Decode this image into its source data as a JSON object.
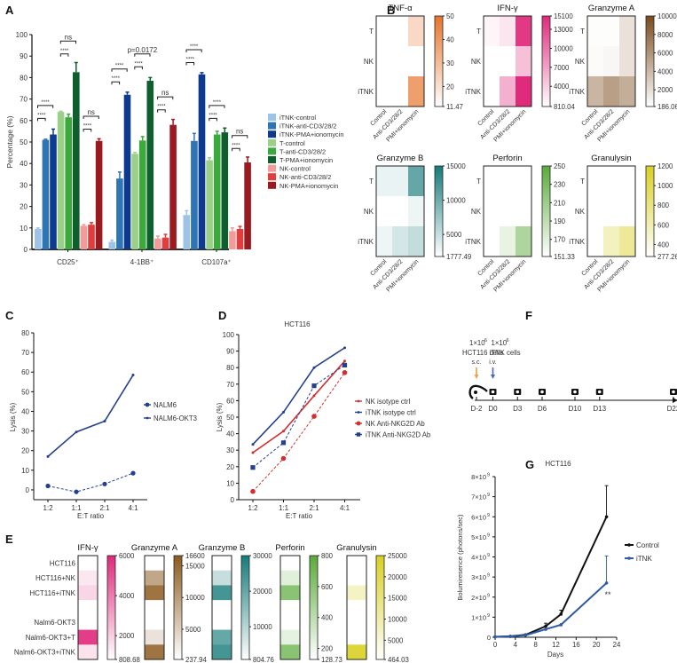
{
  "panels": {
    "A": "A",
    "B": "B",
    "C": "C",
    "D": "D",
    "E": "E",
    "F": "F",
    "G": "G"
  },
  "chart_data": [
    {
      "id": "A",
      "type": "bar",
      "title": "",
      "xlabel": "",
      "ylabel": "Percentage (%)",
      "ylim": [
        0,
        100
      ],
      "yticks": [
        0,
        10,
        20,
        30,
        40,
        50,
        60,
        70,
        80,
        90,
        100
      ],
      "categories": [
        "CD25⁺",
        "4-1BB⁺",
        "CD107a⁺"
      ],
      "legend_position": "right",
      "series": [
        {
          "name": "iTNK-control",
          "color": "#9dc3e6",
          "values": [
            9.5,
            3.5,
            16
          ],
          "err": [
            0.5,
            0.8,
            2
          ]
        },
        {
          "name": "iTNK-anti-CD3/28/2",
          "color": "#2e75b6",
          "values": [
            51,
            33,
            50.5
          ],
          "err": [
            0.3,
            3,
            3.5
          ]
        },
        {
          "name": "iTNK-PMA+ionomycin",
          "color": "#0d3a8e",
          "values": [
            53.5,
            72,
            81.5
          ],
          "err": [
            2.5,
            1.2,
            0.8
          ]
        },
        {
          "name": "T-control",
          "color": "#9bd088",
          "values": [
            64,
            44.5,
            41.5
          ],
          "err": [
            0.3,
            0.6,
            1.2
          ]
        },
        {
          "name": "T-anti-CD3/28/2",
          "color": "#3aaa3a",
          "values": [
            61.5,
            50.7,
            53.5
          ],
          "err": [
            1.5,
            1.8,
            1.5
          ]
        },
        {
          "name": "T-PMA+ionomycin",
          "color": "#0e5e2e",
          "values": [
            82.5,
            78.5,
            54.5
          ],
          "err": [
            4.5,
            1.5,
            2
          ]
        },
        {
          "name": "NK-control",
          "color": "#f29b9b",
          "values": [
            11,
            5,
            8.5
          ],
          "err": [
            0.5,
            1.2,
            1.5
          ]
        },
        {
          "name": "NK-anti-CD3/28/2",
          "color": "#e23c3c",
          "values": [
            11.5,
            5.5,
            9.5
          ],
          "err": [
            1,
            1.5,
            1.2
          ]
        },
        {
          "name": "NK-PMA+ionomycin",
          "color": "#9b1a1f",
          "values": [
            50.5,
            58,
            40.5
          ],
          "err": [
            1,
            2.5,
            2.5
          ]
        }
      ],
      "annotations": [
        {
          "group": 0,
          "from": 1,
          "to": 2,
          "text": "****",
          "level": 67
        },
        {
          "group": 0,
          "from": 1,
          "to": 2,
          "text": "****",
          "level": 61
        },
        {
          "group": 0,
          "from": 4,
          "to": 5,
          "text": "ns",
          "level": 97
        },
        {
          "group": 0,
          "from": 4,
          "to": 5,
          "text": "****",
          "level": 91
        },
        {
          "group": 0,
          "from": 7,
          "to": 8,
          "text": "ns",
          "level": 62
        },
        {
          "group": 0,
          "from": 7,
          "to": 8,
          "text": "****",
          "level": 56
        },
        {
          "group": 1,
          "from": 1,
          "to": 2,
          "text": "****",
          "level": 84
        },
        {
          "group": 1,
          "from": 1,
          "to": 2,
          "text": "****",
          "level": 78
        },
        {
          "group": 1,
          "from": 4,
          "to": 5,
          "text": "p=0.0172",
          "level": 91
        },
        {
          "group": 1,
          "from": 4,
          "to": 5,
          "text": "****",
          "level": 85
        },
        {
          "group": 1,
          "from": 7,
          "to": 8,
          "text": "ns",
          "level": 71
        },
        {
          "group": 1,
          "from": 7,
          "to": 8,
          "text": "****",
          "level": 65
        },
        {
          "group": 2,
          "from": 1,
          "to": 2,
          "text": "****",
          "level": 93
        },
        {
          "group": 2,
          "from": 1,
          "to": 2,
          "text": "****",
          "level": 87
        },
        {
          "group": 2,
          "from": 4,
          "to": 5,
          "text": "****",
          "level": 67
        },
        {
          "group": 2,
          "from": 4,
          "to": 5,
          "text": "****",
          "level": 61
        },
        {
          "group": 2,
          "from": 7,
          "to": 8,
          "text": "ns",
          "level": 53
        },
        {
          "group": 2,
          "from": 7,
          "to": 8,
          "text": "****",
          "level": 47
        }
      ]
    },
    {
      "id": "B",
      "type": "heatmap",
      "rows": [
        "T",
        "NK",
        "iTNK"
      ],
      "cols": [
        "Control",
        "Anti-CD3/28/2",
        "PMI+ionomycin"
      ],
      "maps": [
        {
          "title": "TNF-α",
          "color": "#e8732a",
          "min": 11.47,
          "max": 50,
          "ticks": [
            "50",
            "40",
            "30",
            "20",
            "11.47"
          ],
          "tickvals": [
            50,
            40,
            30,
            20,
            11.47
          ],
          "values": [
            [
              11.47,
              11.47,
              22
            ],
            [
              11.47,
              11.47,
              11.47
            ],
            [
              11.47,
              11.47,
              38
            ]
          ]
        },
        {
          "title": "IFN-γ",
          "color": "#e0287a",
          "min": 810.04,
          "max": 15100,
          "ticks": [
            "15100",
            "13000",
            "10000",
            "7000",
            "4000",
            "810.04"
          ],
          "tickvals": [
            15100,
            13000,
            10000,
            7000,
            4000,
            810.04
          ],
          "values": [
            [
              1500,
              2500,
              14000
            ],
            [
              810.04,
              810.04,
              5000
            ],
            [
              810.04,
              6000,
              15000
            ]
          ]
        },
        {
          "title": "Granzyme A",
          "color": "#7a4a1c",
          "min": 186.06,
          "max": 10000,
          "ticks": [
            "10000",
            "8000",
            "6000",
            "4000",
            "2000",
            "186.06"
          ],
          "tickvals": [
            10000,
            8000,
            6000,
            4000,
            2000,
            186.06
          ],
          "values": [
            [
              300,
              300,
              1800
            ],
            [
              400,
              600,
              1800
            ],
            [
              4200,
              5400,
              4600
            ]
          ]
        },
        {
          "title": "Granzyme B",
          "color": "#167a7a",
          "min": 1777.49,
          "max": 15000,
          "ticks": [
            "15000",
            "10000",
            "5000",
            "1777.49"
          ],
          "tickvals": [
            15000,
            10000,
            5000,
            1777.49
          ],
          "values": [
            [
              3000,
              3000,
              10500
            ],
            [
              1777.49,
              1777.49,
              2800
            ],
            [
              2800,
              4200,
              5200
            ]
          ]
        },
        {
          "title": "Perforin",
          "color": "#5aaa3a",
          "min": 151.33,
          "max": 250,
          "ticks": [
            "250",
            "230",
            "210",
            "190",
            "170",
            "151.33"
          ],
          "tickvals": [
            250,
            230,
            210,
            190,
            170,
            151.33
          ],
          "values": [
            [
              151.33,
              151.33,
              151.33
            ],
            [
              151.33,
              151.33,
              151.33
            ],
            [
              151.33,
              165,
              200
            ]
          ]
        },
        {
          "title": "Granulysin",
          "color": "#d8d020",
          "min": 277.26,
          "max": 1200,
          "ticks": [
            "1200",
            "1000",
            "800",
            "600",
            "400",
            "277.26"
          ],
          "tickvals": [
            1200,
            1000,
            800,
            600,
            400,
            277.26
          ],
          "values": [
            [
              277.26,
              277.26,
              277.26
            ],
            [
              277.26,
              277.26,
              277.26
            ],
            [
              277.26,
              550,
              700
            ]
          ]
        }
      ]
    },
    {
      "id": "C",
      "type": "line",
      "xlabel": "E:T ratio",
      "ylabel": "Lysis (%)",
      "ylim": [
        -5,
        80
      ],
      "yticks": [
        0,
        10,
        20,
        30,
        40,
        50,
        60,
        70,
        80
      ],
      "categories": [
        "1:2",
        "1:1",
        "2:1",
        "4:1"
      ],
      "legend_position": "right",
      "series": [
        {
          "name": "NALM6",
          "color": "#23408e",
          "dashed": true,
          "marker": "circle",
          "values": [
            2,
            -1,
            3,
            8.5
          ]
        },
        {
          "name": "NALM6-OKT3",
          "color": "#23408e",
          "dashed": false,
          "marker": "small",
          "values": [
            17,
            29.5,
            35,
            58.5
          ]
        }
      ]
    },
    {
      "id": "D",
      "type": "line",
      "title": "HCT116",
      "xlabel": "E:T ratio",
      "ylabel": "Lysis (%)",
      "ylim": [
        0,
        100
      ],
      "yticks": [
        0,
        10,
        20,
        30,
        40,
        50,
        60,
        70,
        80,
        90,
        100
      ],
      "categories": [
        "1:2",
        "1:1",
        "2:1",
        "4:1"
      ],
      "legend_position": "right",
      "series": [
        {
          "name": "NK isotype ctrl",
          "color": "#d23030",
          "dashed": false,
          "marker": "small",
          "values": [
            28.5,
            41.5,
            63,
            84
          ]
        },
        {
          "name": "iTNK isotype ctrl",
          "color": "#23408e",
          "dashed": false,
          "marker": "small",
          "values": [
            33.5,
            53,
            80,
            92
          ]
        },
        {
          "name": "NK Anti-NKG2D Ab",
          "color": "#d23030",
          "dashed": true,
          "marker": "circle",
          "values": [
            5,
            25,
            50.5,
            77
          ]
        },
        {
          "name": "iTNK Anti-NKG2D Ab",
          "color": "#23408e",
          "dashed": true,
          "marker": "square",
          "values": [
            19.5,
            34.5,
            69,
            81.5
          ]
        }
      ]
    },
    {
      "id": "E",
      "type": "heatmap",
      "rows": [
        "HCT116",
        "HCT116+NK",
        "HCT116+iTNK",
        "",
        "Nalm6-OKT3",
        "Nalm6-OKT3+T",
        "Nalm6-OKT3+iTNK"
      ],
      "maps": [
        {
          "title": "IFN-γ",
          "color": "#e0287a",
          "min": 808.68,
          "max": 6000,
          "ticks": [
            "6000",
            "4000",
            "2000",
            "808.68"
          ],
          "tickvals": [
            6000,
            4000,
            2000,
            808.68
          ],
          "values": [
            808.68,
            1400,
            1800,
            null,
            808.68,
            5500,
            1500
          ]
        },
        {
          "title": "Granzyme A",
          "color": "#8a5a1e",
          "min": 237.94,
          "max": 16600,
          "ticks": [
            "16600",
            "15000",
            "10000",
            "5000",
            "237.94"
          ],
          "tickvals": [
            16600,
            15000,
            10000,
            5000,
            237.94
          ],
          "values": [
            237.94,
            9000,
            14000,
            null,
            237.94,
            3000,
            14000
          ]
        },
        {
          "title": "Granzyme B",
          "color": "#167a7a",
          "min": 804.76,
          "max": 30000,
          "ticks": [
            "30000",
            "20000",
            "10000",
            "804.76"
          ],
          "tickvals": [
            30000,
            20000,
            10000,
            804.76
          ],
          "values": [
            804.76,
            8000,
            24000,
            null,
            804.76,
            20000,
            24000
          ]
        },
        {
          "title": "Perforin",
          "color": "#5aaa3a",
          "min": 128.73,
          "max": 800,
          "ticks": [
            "800",
            "600",
            "400",
            "200",
            "128.73"
          ],
          "tickvals": [
            800,
            600,
            400,
            200,
            128.73
          ],
          "values": [
            128.73,
            250,
            600,
            null,
            128.73,
            230,
            600
          ]
        },
        {
          "title": "Granulysin",
          "color": "#d8d020",
          "min": 464.03,
          "max": 25000,
          "ticks": [
            "25000",
            "20000",
            "15000",
            "10000",
            "5000",
            "464.03"
          ],
          "tickvals": [
            25000,
            20000,
            15000,
            10000,
            5000,
            464.03
          ],
          "values": [
            464.03,
            464.03,
            7000,
            null,
            464.03,
            464.03,
            22000
          ]
        }
      ]
    },
    {
      "id": "F",
      "type": "timeline",
      "days": [
        "D-2",
        "D0",
        "D3",
        "D6",
        "D10",
        "D13",
        "D22"
      ],
      "dayvals": [
        -2,
        0,
        3,
        6,
        10,
        13,
        22
      ],
      "injections": [
        {
          "day": "D-2",
          "dose": "1×10",
          "exp": "6",
          "cells": "HCT116 cells",
          "route": "s.c.",
          "color": "#e8a04a"
        },
        {
          "day": "D0",
          "dose": "1×10",
          "exp": "6",
          "cells": "iTNK cells",
          "route": "i.v.",
          "color": "#4a6ab8"
        }
      ],
      "imaging_icon": "camera-icon",
      "mouse_icon": "mouse-icon"
    },
    {
      "id": "G",
      "type": "line",
      "title": "HCT116",
      "xlabel": "Days",
      "ylabel": "Bolumiresence (photons/sec)",
      "xlim": [
        0,
        24
      ],
      "xticks": [
        0,
        4,
        8,
        12,
        16,
        20,
        24
      ],
      "ylim": [
        0,
        8
      ],
      "yticks": [
        "0",
        "1×10",
        "2×10",
        "3×10",
        "4×10",
        "5×10",
        "6×10",
        "7×10",
        "8×10"
      ],
      "y_exponent": "9",
      "y_unit": "1e9 photons/sec",
      "legend_position": "right",
      "annotation": "**",
      "series": [
        {
          "name": "Control",
          "color": "#111111",
          "x": [
            0,
            3,
            6,
            10,
            13,
            22
          ],
          "values": [
            0.02,
            0.05,
            0.12,
            0.55,
            1.15,
            6.0
          ],
          "err": [
            0,
            0,
            0,
            0.15,
            0.2,
            1.55
          ]
        },
        {
          "name": "iTNK",
          "color": "#2e5aa8",
          "x": [
            0,
            3,
            6,
            10,
            13,
            22
          ],
          "values": [
            0.02,
            0.04,
            0.1,
            0.4,
            0.62,
            2.7
          ],
          "err": [
            0,
            0,
            0,
            0,
            0,
            1.35
          ]
        }
      ]
    }
  ]
}
